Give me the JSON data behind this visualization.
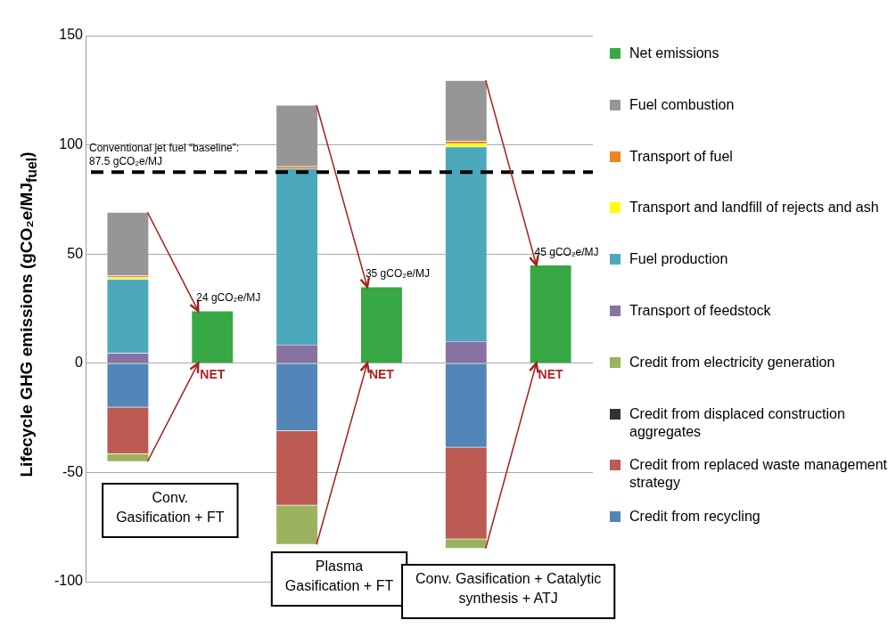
{
  "chart_data": {
    "type": "bar",
    "stacked": true,
    "ylabel": "Lifecycle GHG emissions (gCO₂e/MJ$_{fuel}$)",
    "categories": [
      "Conv.\nGasification + FT",
      null,
      "Plasma\nGasification + FT",
      null,
      "Conv. Gasification + Catalytic\nsynthesis + ATJ",
      null
    ],
    "series": [
      {
        "name": "Credit from recycling",
        "color": "#5286b8",
        "values": [
          -20.2,
          null,
          -31,
          null,
          -38.5,
          null
        ]
      },
      {
        "name": "Credit from replaced waste management strategy",
        "color": "#bc5a54",
        "values": [
          -21.3,
          null,
          -34,
          null,
          -42,
          null
        ]
      },
      {
        "name": "Credit from displaced construction aggregates",
        "color": "#333333",
        "values": [
          null,
          null,
          null,
          null,
          null,
          null
        ]
      },
      {
        "name": "Credit from electricity generation",
        "color": "#9bb35e",
        "values": [
          -3.5,
          null,
          -18,
          null,
          -4.3,
          null
        ]
      },
      {
        "name": "Transport of feedstock",
        "color": "#8872a2",
        "values": [
          4.6,
          null,
          8.5,
          null,
          10.1,
          null
        ]
      },
      {
        "name": "Fuel production",
        "color": "#4ba9bb",
        "values": [
          34,
          null,
          80.7,
          null,
          89,
          null
        ]
      },
      {
        "name": "Transport and landfill of rejects and ash",
        "color": "#ffff00",
        "values": [
          0.7,
          null,
          null,
          null,
          1.6,
          null
        ]
      },
      {
        "name": "Transport of fuel",
        "color": "#f0841e",
        "values": [
          0.8,
          null,
          1,
          null,
          1.1,
          null
        ]
      },
      {
        "name": "Fuel combustion",
        "color": "#969696",
        "values": [
          29,
          null,
          28,
          null,
          27.7,
          null
        ]
      },
      {
        "name": "Net emissions",
        "color": "#37a843",
        "values": [
          null,
          24,
          null,
          35,
          null,
          45
        ],
        "value_labels": [
          null,
          "24 gCO₂e/MJ",
          null,
          "35 gCO₂e/MJ",
          null,
          "45 gCO₂e/MJ"
        ]
      }
    ],
    "ylim": [
      -100,
      150
    ],
    "yticks": [
      -100,
      -50,
      0,
      50,
      100,
      150
    ],
    "grid": "y",
    "legend": "right",
    "ref_lines": [
      {
        "axis": "y",
        "value": 87.5,
        "label": "Conventional jet fuel “baseline”:\n87.5 gCO₂e/MJ",
        "color": "#000000",
        "line_style": "dashed"
      }
    ],
    "annotations": [
      "NET",
      "NET",
      "NET"
    ]
  }
}
